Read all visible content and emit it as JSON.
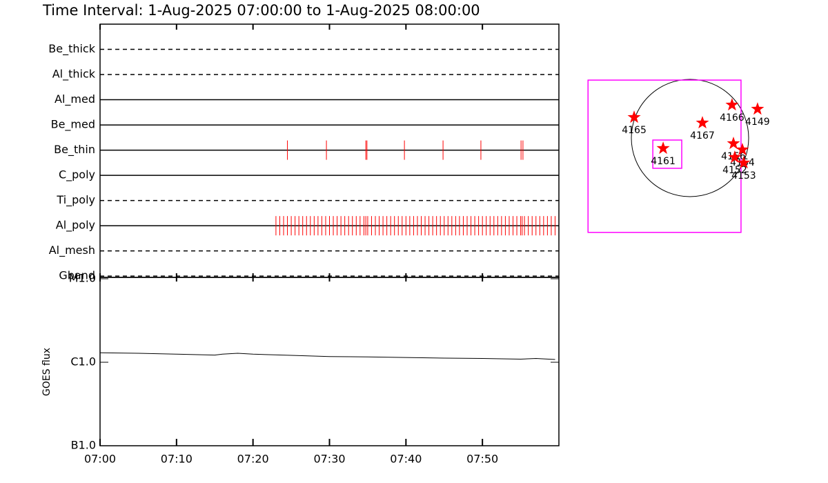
{
  "chart_data": [
    {
      "type": "event",
      "title": "Time Interval:  1-Aug-2025 07:00:00 to  1-Aug-2025 08:00:00",
      "color": "#ff0000",
      "xlim": [
        0,
        60
      ],
      "rows": [
        {
          "name": "Be_thick",
          "style": "dashed",
          "events": []
        },
        {
          "name": "Al_thick",
          "style": "dashed",
          "events": []
        },
        {
          "name": "Al_med",
          "style": "solid",
          "events": []
        },
        {
          "name": "Be_med",
          "style": "solid",
          "events": []
        },
        {
          "name": "Be_thin",
          "style": "solid",
          "events": [
            24.5,
            29.6,
            34.75,
            34.9,
            39.8,
            44.85,
            49.8,
            55.05,
            55.3
          ]
        },
        {
          "name": "C_poly",
          "style": "solid",
          "events": []
        },
        {
          "name": "Ti_poly",
          "style": "dashed",
          "events": []
        },
        {
          "name": "Al_poly",
          "style": "solid",
          "events": [
            23.0,
            23.5,
            24.0,
            24.5,
            25.0,
            25.5,
            26.0,
            26.5,
            27.0,
            27.5,
            28.0,
            28.5,
            29.0,
            29.5,
            30.0,
            30.5,
            31.0,
            31.5,
            32.0,
            32.5,
            33.0,
            33.5,
            34.0,
            34.5,
            34.75,
            35.0,
            35.5,
            36.0,
            36.5,
            37.0,
            37.5,
            38.0,
            38.5,
            39.0,
            39.5,
            40.0,
            40.5,
            41.0,
            41.5,
            42.0,
            42.5,
            43.0,
            43.5,
            44.0,
            44.5,
            45.0,
            45.5,
            46.0,
            46.5,
            47.0,
            47.5,
            48.0,
            48.5,
            49.0,
            49.5,
            50.0,
            50.5,
            51.0,
            51.5,
            52.0,
            52.5,
            53.0,
            53.5,
            54.0,
            54.5,
            55.0,
            55.2,
            55.5,
            56.0,
            56.5,
            57.0,
            57.5,
            58.0,
            58.5,
            59.0,
            59.5
          ]
        },
        {
          "name": "Al_mesh",
          "style": "dashed",
          "events": []
        },
        {
          "name": "Gband",
          "style": "dashed",
          "events": []
        }
      ]
    },
    {
      "type": "line",
      "y_label": "GOES flux",
      "color": "#000000",
      "log_scale": true,
      "xlim": [
        0,
        60
      ],
      "xticks": [
        {
          "value": 0,
          "label": "07:00"
        },
        {
          "value": 10,
          "label": "07:10"
        },
        {
          "value": 20,
          "label": "07:20"
        },
        {
          "value": 30,
          "label": "07:30"
        },
        {
          "value": 40,
          "label": "07:40"
        },
        {
          "value": 50,
          "label": "07:50"
        }
      ],
      "ylim": [
        1e-07,
        1e-05
      ],
      "yticks": [
        {
          "value": 1e-07,
          "label": "B1.0"
        },
        {
          "value": 1e-06,
          "label": "C1.0"
        },
        {
          "value": 1e-05,
          "label": "M1.0"
        }
      ],
      "x": [
        0,
        5,
        10,
        15,
        16,
        18,
        20,
        25,
        30,
        35,
        40,
        45,
        50,
        55,
        57,
        59.5
      ],
      "values": [
        1.3e-06,
        1.28e-06,
        1.25e-06,
        1.22e-06,
        1.25e-06,
        1.28e-06,
        1.25e-06,
        1.21e-06,
        1.17e-06,
        1.16e-06,
        1.14e-06,
        1.12e-06,
        1.11e-06,
        1.09e-06,
        1.11e-06,
        1.08e-06
      ]
    },
    {
      "type": "map",
      "sun_radius": 945,
      "color": "#ff0000",
      "box_color": "#ff00ff",
      "boxes": [
        {
          "x": [
            -1643,
            822
          ],
          "y": [
            -1521,
            933
          ]
        },
        {
          "x": [
            -599,
            -133
          ],
          "y": [
            -488,
            -33
          ]
        }
      ],
      "points": [
        {
          "label": "4165",
          "x": -900,
          "y": 333
        },
        {
          "label": "4167",
          "x": 200,
          "y": 244
        },
        {
          "label": "4166",
          "x": 677,
          "y": 533
        },
        {
          "label": "4149",
          "x": 1088,
          "y": 466
        },
        {
          "label": "4161",
          "x": -433,
          "y": -167
        },
        {
          "label": "4156",
          "x": 700,
          "y": -89
        },
        {
          "label": "4164",
          "x": 844,
          "y": -189
        },
        {
          "label": "4152",
          "x": 722,
          "y": -311
        },
        {
          "label": "4153",
          "x": 866,
          "y": -400
        }
      ]
    }
  ]
}
